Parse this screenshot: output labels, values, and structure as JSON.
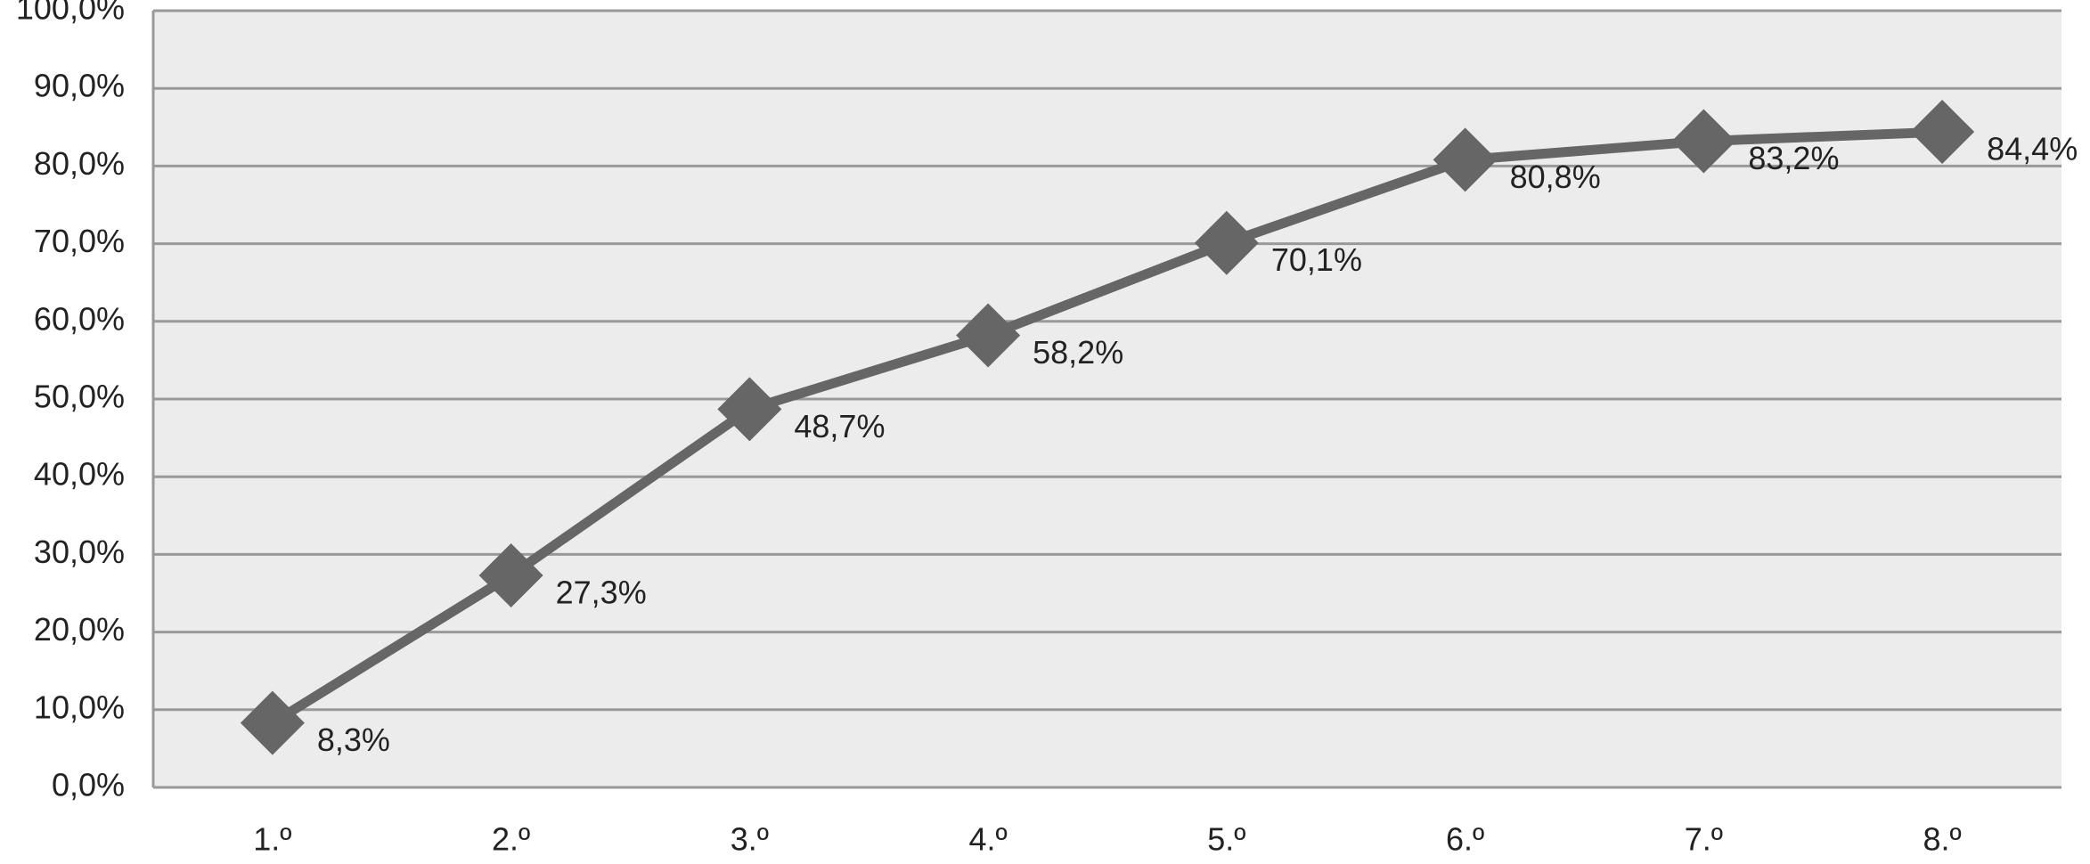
{
  "chart_data": {
    "type": "line",
    "categories": [
      "1.º",
      "2.º",
      "3.º",
      "4.º",
      "5.º",
      "6.º",
      "7.º",
      "8.º"
    ],
    "series": [
      {
        "color": "#666666",
        "values": [
          8.3,
          27.3,
          48.7,
          58.2,
          70.1,
          80.8,
          83.2,
          84.4
        ],
        "value_labels": [
          "8,3%",
          "27,3%",
          "48,7%",
          "58,2%",
          "70,1%",
          "80,8%",
          "83,2%",
          "84,4%"
        ]
      }
    ],
    "ylim": [
      0,
      100
    ],
    "yticks": [
      {
        "value": 0,
        "label": "0,0%"
      },
      {
        "value": 10,
        "label": "10,0%"
      },
      {
        "value": 20,
        "label": "20,0%"
      },
      {
        "value": 30,
        "label": "30,0%"
      },
      {
        "value": 40,
        "label": "40,0%"
      },
      {
        "value": 50,
        "label": "50,0%"
      },
      {
        "value": 60,
        "label": "60,0%"
      },
      {
        "value": 70,
        "label": "70,0%"
      },
      {
        "value": 80,
        "label": "80,0%"
      },
      {
        "value": 90,
        "label": "90,0%"
      },
      {
        "value": 100,
        "label": "100,0%"
      }
    ],
    "grid": true
  }
}
